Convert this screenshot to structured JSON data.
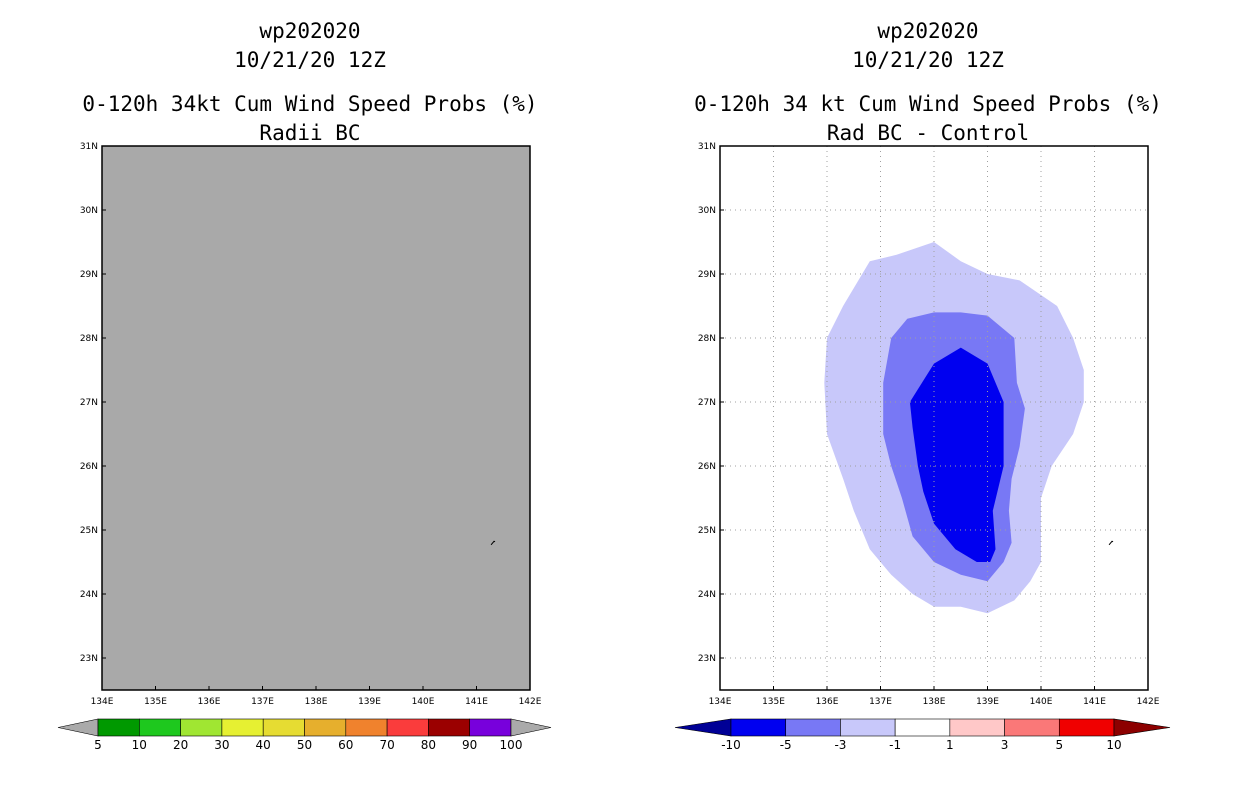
{
  "chart_data": [
    {
      "type": "heatmap",
      "title": [
        "wp202020",
        "10/21/20 12Z",
        "0-120h 34kt Cum Wind Speed Probs (%)",
        "Radii BC"
      ],
      "x_ticks": [
        "134E",
        "135E",
        "136E",
        "137E",
        "138E",
        "139E",
        "140E",
        "141E",
        "142E"
      ],
      "y_ticks": [
        "31N",
        "30N",
        "29N",
        "28N",
        "27N",
        "26N",
        "25N",
        "24N",
        "23N"
      ],
      "xlim": [
        134,
        142
      ],
      "ylim": [
        22.5,
        31
      ],
      "grid": false,
      "field_fill": "#a9a9a9",
      "marker": {
        "lon": 141.3,
        "lat": 24.8
      },
      "colorbar": {
        "labels": [
          "5",
          "10",
          "20",
          "30",
          "40",
          "50",
          "60",
          "70",
          "80",
          "90",
          "100"
        ],
        "colors": [
          "#009900",
          "#1ec81e",
          "#a0e632",
          "#e6f032",
          "#e6dc32",
          "#e6af2d",
          "#f0822d",
          "#fa3c3c",
          "#9b0000",
          "#7800dc"
        ],
        "low_color": "#aaaaaa",
        "high_color": "#aaaaaa"
      }
    },
    {
      "type": "heatmap",
      "title": [
        "wp202020",
        "10/21/20 12Z",
        "0-120h 34 kt Cum Wind Speed Probs (%)",
        "Rad BC - Control"
      ],
      "x_ticks": [
        "134E",
        "135E",
        "136E",
        "137E",
        "138E",
        "139E",
        "140E",
        "141E",
        "142E"
      ],
      "y_ticks": [
        "31N",
        "30N",
        "29N",
        "28N",
        "27N",
        "26N",
        "25N",
        "24N",
        "23N"
      ],
      "xlim": [
        134,
        142
      ],
      "ylim": [
        22.5,
        31
      ],
      "grid": true,
      "marker": {
        "lon": 141.3,
        "lat": 24.8
      },
      "contours": [
        {
          "level": "-1 to -3",
          "color": "#c8c8fa",
          "points": [
            [
              136.0,
              28.0
            ],
            [
              136.3,
              28.5
            ],
            [
              136.8,
              29.2
            ],
            [
              137.3,
              29.3
            ],
            [
              138.0,
              29.5
            ],
            [
              138.5,
              29.2
            ],
            [
              139.0,
              29.0
            ],
            [
              139.6,
              28.9
            ],
            [
              140.3,
              28.5
            ],
            [
              140.6,
              28.0
            ],
            [
              140.8,
              27.5
            ],
            [
              140.8,
              27.0
            ],
            [
              140.6,
              26.5
            ],
            [
              140.2,
              26.0
            ],
            [
              140.0,
              25.5
            ],
            [
              140.0,
              24.5
            ],
            [
              139.8,
              24.2
            ],
            [
              139.5,
              23.9
            ],
            [
              139.0,
              23.7
            ],
            [
              138.5,
              23.8
            ],
            [
              138.0,
              23.8
            ],
            [
              137.6,
              24.0
            ],
            [
              137.2,
              24.3
            ],
            [
              136.8,
              24.7
            ],
            [
              136.5,
              25.3
            ],
            [
              136.3,
              25.8
            ],
            [
              136.0,
              26.5
            ],
            [
              135.95,
              27.3
            ]
          ]
        },
        {
          "level": "-3 to -5",
          "color": "#7878f5",
          "points": [
            [
              137.2,
              28.0
            ],
            [
              137.5,
              28.3
            ],
            [
              138.0,
              28.4
            ],
            [
              138.5,
              28.4
            ],
            [
              139.0,
              28.35
            ],
            [
              139.5,
              28.0
            ],
            [
              139.55,
              27.3
            ],
            [
              139.7,
              26.9
            ],
            [
              139.6,
              26.3
            ],
            [
              139.45,
              25.8
            ],
            [
              139.4,
              25.3
            ],
            [
              139.45,
              24.8
            ],
            [
              139.3,
              24.5
            ],
            [
              139.0,
              24.2
            ],
            [
              138.5,
              24.3
            ],
            [
              138.0,
              24.5
            ],
            [
              137.6,
              24.9
            ],
            [
              137.4,
              25.5
            ],
            [
              137.2,
              26.0
            ],
            [
              137.05,
              26.5
            ],
            [
              137.05,
              27.3
            ]
          ]
        },
        {
          "level": "-5 to -10",
          "color": "#0000f0",
          "points": [
            [
              137.55,
              27.0
            ],
            [
              138.0,
              27.6
            ],
            [
              138.5,
              27.85
            ],
            [
              139.0,
              27.6
            ],
            [
              139.3,
              27.0
            ],
            [
              139.3,
              26.0
            ],
            [
              139.1,
              25.3
            ],
            [
              139.15,
              24.7
            ],
            [
              139.05,
              24.5
            ],
            [
              138.8,
              24.5
            ],
            [
              138.4,
              24.7
            ],
            [
              138.0,
              25.1
            ],
            [
              137.8,
              25.6
            ],
            [
              137.7,
              26.0
            ],
            [
              137.6,
              26.6
            ]
          ]
        }
      ],
      "colorbar": {
        "labels": [
          "-10",
          "-5",
          "-3",
          "-1",
          "1",
          "3",
          "5",
          "10"
        ],
        "colors": [
          "#0000f0",
          "#7878f5",
          "#c8c8fa",
          "#ffffff",
          "#ffc8c8",
          "#fa7878",
          "#f00000"
        ],
        "low_color": "#000096",
        "high_color": "#8c0000"
      }
    }
  ]
}
